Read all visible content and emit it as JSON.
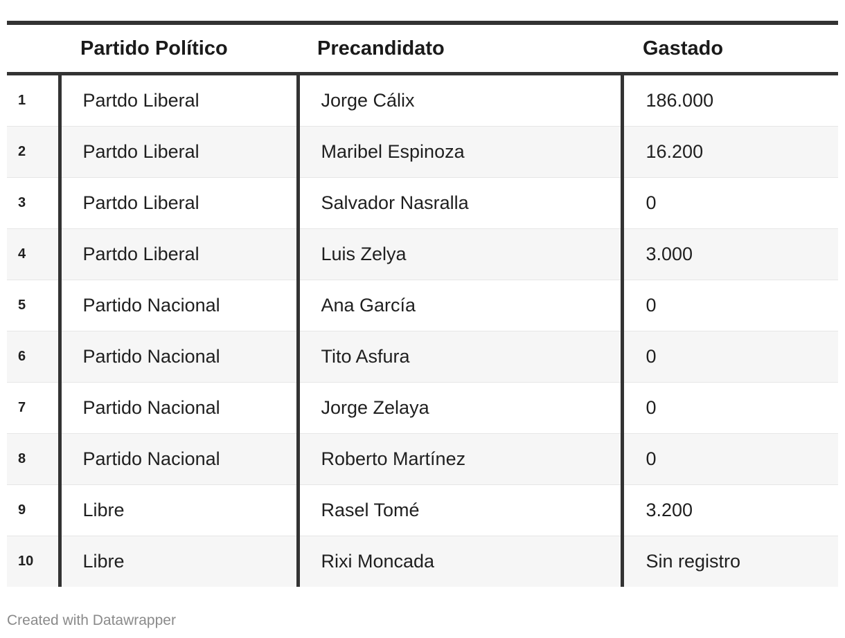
{
  "chart_data": {
    "type": "table",
    "columns": [
      "",
      "Partido Político",
      "Precandidato",
      "Gastado"
    ],
    "rows": [
      [
        "1",
        "Partdo Liberal",
        "Jorge Cálix",
        "186.000"
      ],
      [
        "2",
        "Partdo Liberal",
        "Maribel Espinoza",
        "16.200"
      ],
      [
        "3",
        "Partdo Liberal",
        "Salvador Nasralla",
        "0"
      ],
      [
        "4",
        "Partdo Liberal",
        "Luis Zelya",
        "3.000"
      ],
      [
        "5",
        "Partido Nacional",
        "Ana García",
        "0"
      ],
      [
        "6",
        "Partido Nacional",
        "Tito Asfura",
        "0"
      ],
      [
        "7",
        "Partido Nacional",
        "Jorge Zelaya",
        "0"
      ],
      [
        "8",
        "Partido Nacional",
        "Roberto Martínez",
        "0"
      ],
      [
        "9",
        "Libre",
        "Rasel Tomé",
        "3.200"
      ],
      [
        "10",
        "Libre",
        "Rixi Moncada",
        "Sin registro"
      ]
    ]
  },
  "footer": {
    "credit": "Created with Datawrapper"
  },
  "colors": {
    "rule": "#333333",
    "stripe": "#f6f6f6",
    "footer_text": "#8a8a8a"
  }
}
